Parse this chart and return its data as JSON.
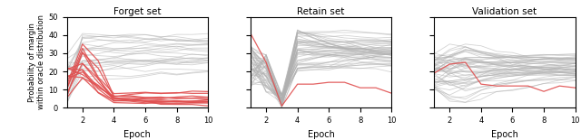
{
  "titles": [
    "Forget set",
    "Retain set",
    "Validation set"
  ],
  "xlabel": "Epoch",
  "ylabel": "Probability of margin\nwithin oracle distribution",
  "epochs": [
    1,
    2,
    3,
    4,
    5,
    6,
    7,
    8,
    9,
    10
  ],
  "ylim": [
    0,
    50
  ],
  "yticks": [
    0,
    10,
    20,
    30,
    40,
    50
  ],
  "gray_color": "#b0b0b0",
  "red_color": "#e05050",
  "gray_alpha": 0.55,
  "red_alpha": 0.9,
  "linewidth_gray": 0.6,
  "linewidth_red": 0.9
}
